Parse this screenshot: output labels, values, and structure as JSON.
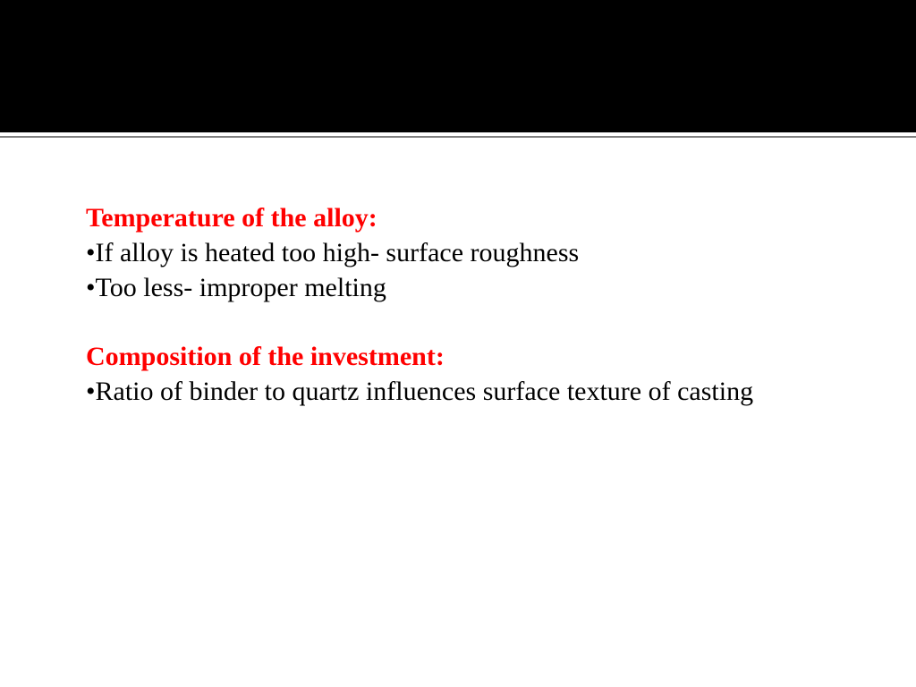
{
  "colors": {
    "heading_color": "#ff0000",
    "body_color": "#000000",
    "header_bg": "#000000",
    "page_bg": "#ffffff",
    "divider": "#808080"
  },
  "typography": {
    "font_family": "Times New Roman",
    "heading_fontsize": 30,
    "heading_weight": "bold",
    "body_fontsize": 30
  },
  "sections": [
    {
      "heading": "Temperature of the alloy:",
      "bullets": [
        "If alloy is heated too high- surface roughness",
        "Too less- improper melting"
      ]
    },
    {
      "heading": "Composition of the investment:",
      "bullets": [
        "Ratio of binder to quartz influences surface texture of casting"
      ]
    }
  ]
}
